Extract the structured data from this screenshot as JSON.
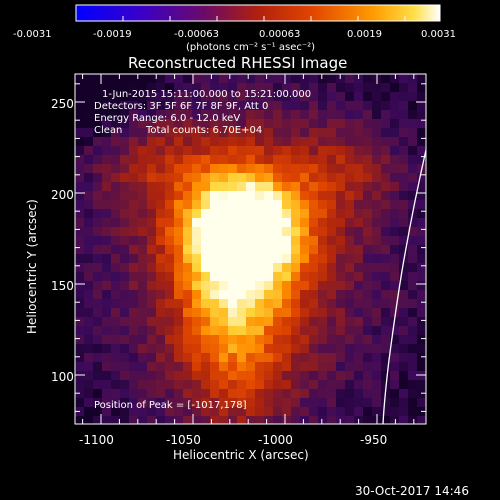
{
  "colorbar": {
    "ticks": [
      "-0.0031",
      "-0.0019",
      "-0.00063",
      "0.00063",
      "0.0019",
      "0.0031"
    ],
    "unit_label": "(photons cm⁻² s⁻¹ asec⁻²)"
  },
  "plot": {
    "title": "Reconstructed RHESSI Image",
    "time_range": "1-Jun-2015 15:11:00.000 to 15:21:00.000",
    "detectors": "Detectors: 3F 5F 6F 7F 8F 9F, Att 0",
    "energy_range": "Energy Range: 6.0 - 12.0 keV",
    "method": "Clean",
    "total_counts": "Total counts: 6.70E+04",
    "peak_position": "Position of Peak = [-1017,178]",
    "xlabel": "Heliocentric X (arcsec)",
    "ylabel": "Heliocentric Y (arcsec)",
    "xticks": [
      "-1100",
      "-1050",
      "-1000",
      "-950"
    ],
    "yticks": [
      "250",
      "200",
      "150",
      "100"
    ]
  },
  "footer": {
    "timestamp": "30-Oct-2017 14:46"
  },
  "colors": {
    "background": "#000000",
    "text": "#ffffff",
    "limb": "#ffffff"
  },
  "colormap": [
    "#0000ff",
    "#4400aa",
    "#6a0a6a",
    "#b8220e",
    "#e64a00",
    "#ff9a00",
    "#ffe24a",
    "#ffffff"
  ]
}
